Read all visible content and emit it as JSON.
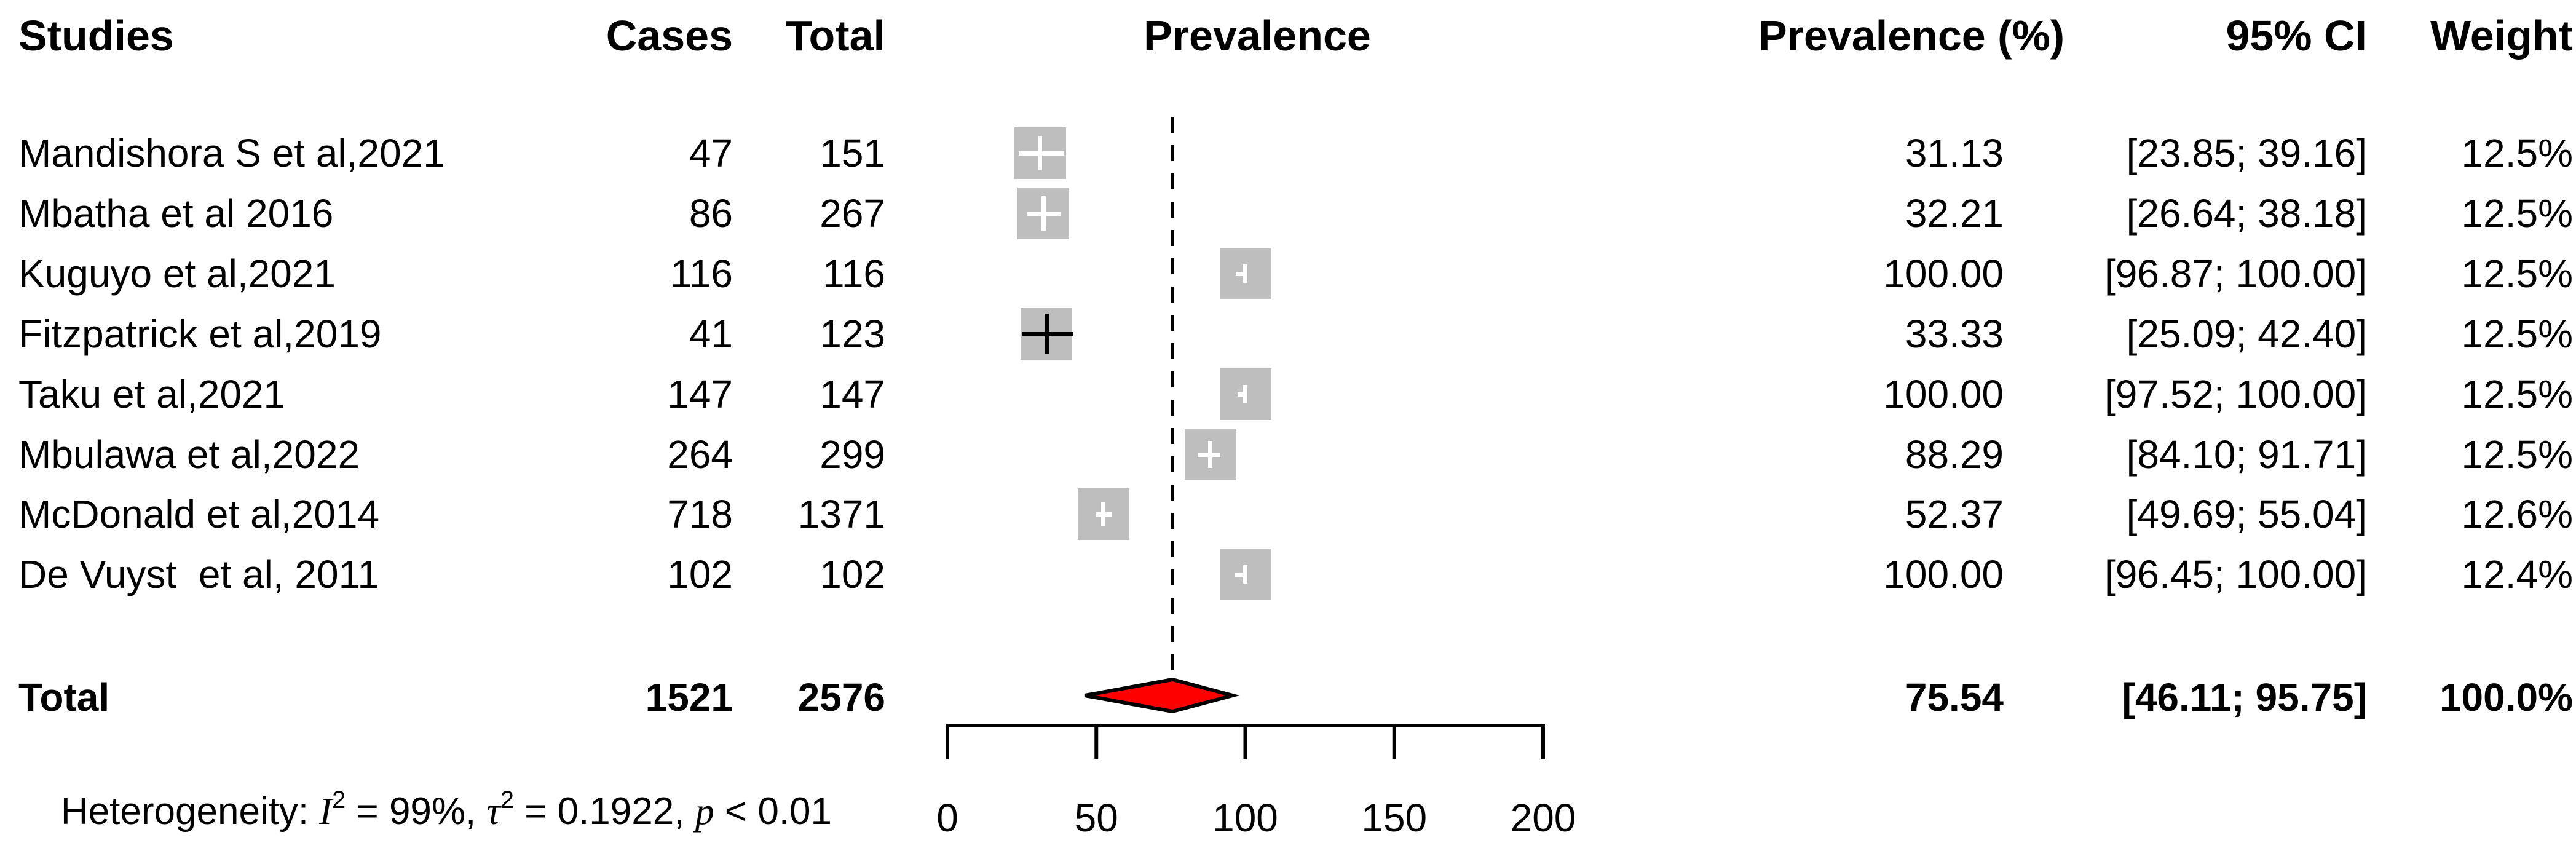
{
  "header": {
    "studies": "Studies",
    "cases": "Cases",
    "total": "Total",
    "prevalence": "Prevalence",
    "prevalence_pct": "Prevalence (%)",
    "ci": "95% CI",
    "weight": "Weight"
  },
  "studies": [
    {
      "name": "Mandishora S et al,2021",
      "cases": "47",
      "total": "151",
      "prevalence": "31.13",
      "ci": "[23.85; 39.16]",
      "weight": "12.5%"
    },
    {
      "name": "Mbatha et al 2016",
      "cases": "86",
      "total": "267",
      "prevalence": "32.21",
      "ci": "[26.64; 38.18]",
      "weight": "12.5%"
    },
    {
      "name": "Kuguyo et al,2021",
      "cases": "116",
      "total": "116",
      "prevalence": "100.00",
      "ci": "[96.87; 100.00]",
      "weight": "12.5%"
    },
    {
      "name": "Fitzpatrick et al,2019",
      "cases": "41",
      "total": "123",
      "prevalence": "33.33",
      "ci": "[25.09; 42.40]",
      "weight": "12.5%"
    },
    {
      "name": "Taku et al,2021",
      "cases": "147",
      "total": "147",
      "prevalence": "100.00",
      "ci": "[97.52; 100.00]",
      "weight": "12.5%"
    },
    {
      "name": "Mbulawa et al,2022",
      "cases": "264",
      "total": "299",
      "prevalence": "88.29",
      "ci": "[84.10; 91.71]",
      "weight": "12.5%"
    },
    {
      "name": "McDonald et al,2014",
      "cases": "718",
      "total": "1371",
      "prevalence": "52.37",
      "ci": "[49.69; 55.04]",
      "weight": "12.6%"
    },
    {
      "name": "De Vuyst  et al, 2011",
      "cases": "102",
      "total": "102",
      "prevalence": "100.00",
      "ci": "[96.45; 100.00]",
      "weight": "12.4%"
    }
  ],
  "total_row": {
    "label": "Total",
    "cases": "1521",
    "total": "2576",
    "prevalence": "75.54",
    "ci": "[46.11; 95.75]",
    "weight": "100.0%"
  },
  "heterogeneity": {
    "prefix": "Heterogeneity: ",
    "i_sym": "I",
    "i_sup": "2",
    "i_val": " = 99%, ",
    "tau_sym": "τ",
    "tau_sup": "2",
    "tau_val": " = 0.1922, ",
    "p_sym": "p",
    "p_val": " < 0.01"
  },
  "colors": {
    "square": "#BEBEBE",
    "marker_inside": "#FFFFFF",
    "marker_outside": "#000000",
    "diamond_fill": "#FF0000",
    "diamond_stroke": "#000000",
    "axis": "#000000",
    "dashed_line": "#000000",
    "text": "#000000"
  },
  "chart_data": {
    "type": "forest",
    "title": "",
    "xlabel": "",
    "x_ticks": [
      0,
      50,
      100,
      150,
      200
    ],
    "x_range": [
      0,
      200
    ],
    "dashed_reference_value": 75.54,
    "studies": [
      {
        "name": "Mandishora S et al,2021",
        "cases": 47,
        "total": 151,
        "estimate": 31.13,
        "ci_low": 23.85,
        "ci_high": 39.16,
        "weight_pct": 12.5
      },
      {
        "name": "Mbatha et al 2016",
        "cases": 86,
        "total": 267,
        "estimate": 32.21,
        "ci_low": 26.64,
        "ci_high": 38.18,
        "weight_pct": 12.5
      },
      {
        "name": "Kuguyo et al,2021",
        "cases": 116,
        "total": 116,
        "estimate": 100.0,
        "ci_low": 96.87,
        "ci_high": 100.0,
        "weight_pct": 12.5
      },
      {
        "name": "Fitzpatrick et al,2019",
        "cases": 41,
        "total": 123,
        "estimate": 33.33,
        "ci_low": 25.09,
        "ci_high": 42.4,
        "weight_pct": 12.5
      },
      {
        "name": "Taku et al,2021",
        "cases": 147,
        "total": 147,
        "estimate": 100.0,
        "ci_low": 97.52,
        "ci_high": 100.0,
        "weight_pct": 12.5
      },
      {
        "name": "Mbulawa et al,2022",
        "cases": 264,
        "total": 299,
        "estimate": 88.29,
        "ci_low": 84.1,
        "ci_high": 91.71,
        "weight_pct": 12.5
      },
      {
        "name": "McDonald et al,2014",
        "cases": 718,
        "total": 1371,
        "estimate": 52.37,
        "ci_low": 49.69,
        "ci_high": 55.04,
        "weight_pct": 12.6
      },
      {
        "name": "De Vuyst et al, 2011",
        "cases": 102,
        "total": 102,
        "estimate": 100.0,
        "ci_low": 96.45,
        "ci_high": 100.0,
        "weight_pct": 12.4
      }
    ],
    "pooled": {
      "label": "Total",
      "cases": 1521,
      "total": 2576,
      "estimate": 75.54,
      "ci_low": 46.11,
      "ci_high": 95.75,
      "weight_pct": 100.0
    },
    "heterogeneity": {
      "I2": "99%",
      "tau2": 0.1922,
      "p": "< 0.01"
    }
  }
}
